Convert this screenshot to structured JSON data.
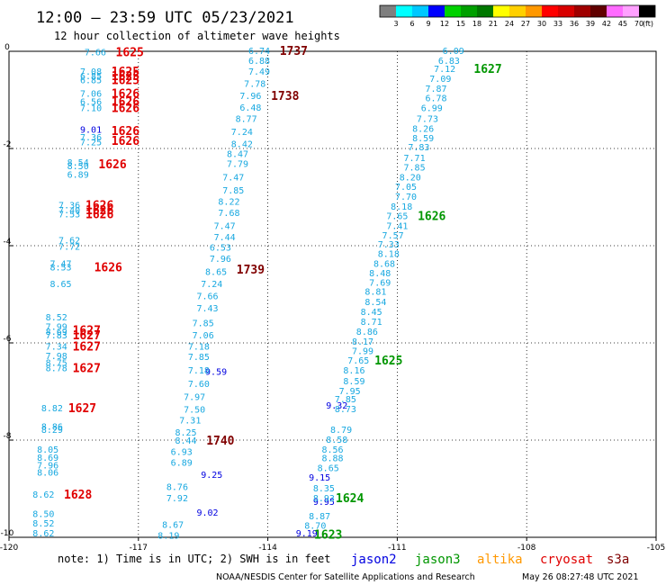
{
  "header": {
    "title": "12:00 – 23:59 UTC 05/23/2021",
    "subtitle": "12 hour collection of altimeter wave heights"
  },
  "color_scale": {
    "unit": "(ft)",
    "labels": [
      "3",
      "6",
      "9",
      "12",
      "15",
      "18",
      "21",
      "24",
      "27",
      "30",
      "33",
      "36",
      "39",
      "42",
      "45",
      "70"
    ],
    "colors": [
      "#7f7f7f",
      "#00ffff",
      "#00c8ff",
      "#0000ff",
      "#00d200",
      "#00a000",
      "#007800",
      "#ffff00",
      "#ffd000",
      "#ff9800",
      "#ff0000",
      "#d80000",
      "#a00000",
      "#600000",
      "#ff6aff",
      "#ffa0ff",
      "#000000"
    ]
  },
  "footer": {
    "note": "note: 1) Time is in UTC; 2) SWH is in feet",
    "legend": [
      {
        "name": "jason2",
        "color": "#0000e0"
      },
      {
        "name": "jason3",
        "color": "#009600"
      },
      {
        "name": "altika",
        "color": "#ff9800"
      },
      {
        "name": "cryosat",
        "color": "#e00000"
      },
      {
        "name": "s3a",
        "color": "#800000"
      }
    ],
    "credit": "NOAA/NESDIS Center for Satellite Applications and Research",
    "timestamp": "May 26 08:27:48 UTC 2021"
  },
  "chart_data": {
    "type": "scatter",
    "xlim": [
      -120,
      -105
    ],
    "ylim": [
      -10,
      0
    ],
    "x_ticks": [
      "-120",
      "-117",
      "-114",
      "-111",
      "-108",
      "-105"
    ],
    "y_ticks": [
      "0",
      "-2",
      "-4",
      "-6",
      "-8",
      "-10"
    ],
    "grid": true,
    "series": [
      {
        "name": "jason2",
        "color": "#0000e0",
        "points": [
          {
            "lon": -118.1,
            "lat": -1.62,
            "swh": "9.01"
          },
          {
            "lon": -115.2,
            "lat": -6.6,
            "swh": "9.59"
          },
          {
            "lon": -115.3,
            "lat": -8.72,
            "swh": "9.25"
          },
          {
            "lon": -115.4,
            "lat": -9.5,
            "swh": "9.02"
          },
          {
            "lon": -112.4,
            "lat": -7.3,
            "swh": "9.32"
          },
          {
            "lon": -112.8,
            "lat": -8.78,
            "swh": "9.15"
          },
          {
            "lon": -112.7,
            "lat": -9.28,
            "swh": "9.95"
          },
          {
            "lon": -113.1,
            "lat": -9.93,
            "swh": "9.19"
          }
        ]
      },
      {
        "name": "cyan-swh",
        "color": "#18a8e0",
        "points": [
          {
            "lon": -118.0,
            "lat": -0.03,
            "swh": "7.66"
          },
          {
            "lon": -118.1,
            "lat": -0.43,
            "swh": "7.08"
          },
          {
            "lon": -118.1,
            "lat": -0.52,
            "swh": "6.85"
          },
          {
            "lon": -118.1,
            "lat": -0.6,
            "swh": "6.85"
          },
          {
            "lon": -118.1,
            "lat": -0.88,
            "swh": "7.06"
          },
          {
            "lon": -118.1,
            "lat": -1.05,
            "swh": "6.56"
          },
          {
            "lon": -118.1,
            "lat": -1.18,
            "swh": "7.10"
          },
          {
            "lon": -118.1,
            "lat": -1.78,
            "swh": "7.36"
          },
          {
            "lon": -118.1,
            "lat": -1.88,
            "swh": "7.25"
          },
          {
            "lon": -118.4,
            "lat": -2.3,
            "swh": "8.54"
          },
          {
            "lon": -118.4,
            "lat": -2.37,
            "swh": "8.50"
          },
          {
            "lon": -118.4,
            "lat": -2.55,
            "swh": "6.89"
          },
          {
            "lon": -118.6,
            "lat": -3.18,
            "swh": "7.36"
          },
          {
            "lon": -118.6,
            "lat": -3.28,
            "swh": "7.40"
          },
          {
            "lon": -118.6,
            "lat": -3.36,
            "swh": "7.53"
          },
          {
            "lon": -118.6,
            "lat": -3.9,
            "swh": "7.62"
          },
          {
            "lon": -118.6,
            "lat": -4.03,
            "swh": "7.72"
          },
          {
            "lon": -118.8,
            "lat": -4.38,
            "swh": "7.47"
          },
          {
            "lon": -118.8,
            "lat": -4.45,
            "swh": "8.53"
          },
          {
            "lon": -118.8,
            "lat": -4.8,
            "swh": "8.65"
          },
          {
            "lon": -118.9,
            "lat": -5.48,
            "swh": "8.52"
          },
          {
            "lon": -118.9,
            "lat": -5.68,
            "swh": "7.99"
          },
          {
            "lon": -118.9,
            "lat": -5.78,
            "swh": "8.69"
          },
          {
            "lon": -118.9,
            "lat": -5.85,
            "swh": "7.83"
          },
          {
            "lon": -118.9,
            "lat": -6.08,
            "swh": "7.34"
          },
          {
            "lon": -118.9,
            "lat": -6.28,
            "swh": "7.98"
          },
          {
            "lon": -118.9,
            "lat": -6.42,
            "swh": "8.75"
          },
          {
            "lon": -118.9,
            "lat": -6.53,
            "swh": "8.78"
          },
          {
            "lon": -119.0,
            "lat": -7.35,
            "swh": "8.82"
          },
          {
            "lon": -119.0,
            "lat": -7.73,
            "swh": "8.86"
          },
          {
            "lon": -119.0,
            "lat": -7.8,
            "swh": "8.29"
          },
          {
            "lon": -119.1,
            "lat": -8.2,
            "swh": "8.05"
          },
          {
            "lon": -119.1,
            "lat": -8.37,
            "swh": "8.69"
          },
          {
            "lon": -119.1,
            "lat": -8.53,
            "swh": "7.96"
          },
          {
            "lon": -119.1,
            "lat": -8.68,
            "swh": "8.06"
          },
          {
            "lon": -119.2,
            "lat": -9.13,
            "swh": "8.62"
          },
          {
            "lon": -119.2,
            "lat": -9.53,
            "swh": "8.50"
          },
          {
            "lon": -119.2,
            "lat": -9.72,
            "swh": "8.52"
          },
          {
            "lon": -119.2,
            "lat": -9.93,
            "swh": "8.62"
          },
          {
            "lon": -114.2,
            "lat": 0.0,
            "swh": "6.74"
          },
          {
            "lon": -114.2,
            "lat": -0.2,
            "swh": "6.88"
          },
          {
            "lon": -114.2,
            "lat": -0.43,
            "swh": "7.49"
          },
          {
            "lon": -114.3,
            "lat": -0.68,
            "swh": "7.78"
          },
          {
            "lon": -114.4,
            "lat": -0.93,
            "swh": "7.96"
          },
          {
            "lon": -114.4,
            "lat": -1.17,
            "swh": "6.48"
          },
          {
            "lon": -114.5,
            "lat": -1.4,
            "swh": "8.77"
          },
          {
            "lon": -114.6,
            "lat": -1.67,
            "swh": "7.24"
          },
          {
            "lon": -114.6,
            "lat": -1.92,
            "swh": "8.42"
          },
          {
            "lon": -114.7,
            "lat": -2.12,
            "swh": "8.47"
          },
          {
            "lon": -114.7,
            "lat": -2.32,
            "swh": "7.79"
          },
          {
            "lon": -114.8,
            "lat": -2.6,
            "swh": "7.47"
          },
          {
            "lon": -114.8,
            "lat": -2.87,
            "swh": "7.85"
          },
          {
            "lon": -114.9,
            "lat": -3.1,
            "swh": "8.22"
          },
          {
            "lon": -114.9,
            "lat": -3.33,
            "swh": "7.68"
          },
          {
            "lon": -115.0,
            "lat": -3.6,
            "swh": "7.47"
          },
          {
            "lon": -115.0,
            "lat": -3.83,
            "swh": "7.44"
          },
          {
            "lon": -115.1,
            "lat": -4.05,
            "swh": "6.53"
          },
          {
            "lon": -115.1,
            "lat": -4.28,
            "swh": "7.96"
          },
          {
            "lon": -115.2,
            "lat": -4.55,
            "swh": "8.65"
          },
          {
            "lon": -115.3,
            "lat": -4.8,
            "swh": "7.24"
          },
          {
            "lon": -115.4,
            "lat": -5.05,
            "swh": "7.66"
          },
          {
            "lon": -115.4,
            "lat": -5.3,
            "swh": "7.43"
          },
          {
            "lon": -115.5,
            "lat": -5.6,
            "swh": "7.85"
          },
          {
            "lon": -115.5,
            "lat": -5.85,
            "swh": "7.06"
          },
          {
            "lon": -115.6,
            "lat": -6.08,
            "swh": "7.18"
          },
          {
            "lon": -115.6,
            "lat": -6.3,
            "swh": "7.85"
          },
          {
            "lon": -115.6,
            "lat": -6.57,
            "swh": "7.18"
          },
          {
            "lon": -115.6,
            "lat": -6.85,
            "swh": "7.60"
          },
          {
            "lon": -115.7,
            "lat": -7.12,
            "swh": "7.97"
          },
          {
            "lon": -115.7,
            "lat": -7.38,
            "swh": "7.50"
          },
          {
            "lon": -115.8,
            "lat": -7.6,
            "swh": "7.31"
          },
          {
            "lon": -115.9,
            "lat": -7.85,
            "swh": "8.25"
          },
          {
            "lon": -115.9,
            "lat": -8.02,
            "swh": "8.44"
          },
          {
            "lon": -116.0,
            "lat": -8.25,
            "swh": "6.93"
          },
          {
            "lon": -116.0,
            "lat": -8.47,
            "swh": "6.89"
          },
          {
            "lon": -116.1,
            "lat": -8.97,
            "swh": "8.76"
          },
          {
            "lon": -116.1,
            "lat": -9.2,
            "swh": "7.92"
          },
          {
            "lon": -116.2,
            "lat": -9.75,
            "swh": "8.67"
          },
          {
            "lon": -116.3,
            "lat": -9.97,
            "swh": "8.19"
          },
          {
            "lon": -109.7,
            "lat": 0.0,
            "swh": "6.09"
          },
          {
            "lon": -109.8,
            "lat": -0.2,
            "swh": "6.83"
          },
          {
            "lon": -109.9,
            "lat": -0.37,
            "swh": "7.12"
          },
          {
            "lon": -110.0,
            "lat": -0.57,
            "swh": "7.09"
          },
          {
            "lon": -110.1,
            "lat": -0.78,
            "swh": "7.87"
          },
          {
            "lon": -110.1,
            "lat": -0.97,
            "swh": "6.78"
          },
          {
            "lon": -110.2,
            "lat": -1.18,
            "swh": "6.99"
          },
          {
            "lon": -110.3,
            "lat": -1.4,
            "swh": "7.73"
          },
          {
            "lon": -110.4,
            "lat": -1.6,
            "swh": "8.26"
          },
          {
            "lon": -110.4,
            "lat": -1.8,
            "swh": "8.59"
          },
          {
            "lon": -110.5,
            "lat": -1.98,
            "swh": "7.83"
          },
          {
            "lon": -110.6,
            "lat": -2.2,
            "swh": "7.71"
          },
          {
            "lon": -110.6,
            "lat": -2.4,
            "swh": "7.85"
          },
          {
            "lon": -110.7,
            "lat": -2.6,
            "swh": "8.20"
          },
          {
            "lon": -110.8,
            "lat": -2.8,
            "swh": "7.05"
          },
          {
            "lon": -110.8,
            "lat": -3.0,
            "swh": "7.70"
          },
          {
            "lon": -110.9,
            "lat": -3.2,
            "swh": "8.18"
          },
          {
            "lon": -111.0,
            "lat": -3.4,
            "swh": "7.65"
          },
          {
            "lon": -111.0,
            "lat": -3.6,
            "swh": "7.41"
          },
          {
            "lon": -111.1,
            "lat": -3.8,
            "swh": "7.57"
          },
          {
            "lon": -111.2,
            "lat": -3.98,
            "swh": "7.33"
          },
          {
            "lon": -111.2,
            "lat": -4.18,
            "swh": "8.18"
          },
          {
            "lon": -111.3,
            "lat": -4.38,
            "swh": "8.68"
          },
          {
            "lon": -111.4,
            "lat": -4.57,
            "swh": "8.48"
          },
          {
            "lon": -111.4,
            "lat": -4.77,
            "swh": "7.69"
          },
          {
            "lon": -111.5,
            "lat": -4.95,
            "swh": "8.81"
          },
          {
            "lon": -111.5,
            "lat": -5.17,
            "swh": "8.54"
          },
          {
            "lon": -111.6,
            "lat": -5.37,
            "swh": "8.45"
          },
          {
            "lon": -111.6,
            "lat": -5.57,
            "swh": "8.71"
          },
          {
            "lon": -111.7,
            "lat": -5.78,
            "swh": "8.86"
          },
          {
            "lon": -111.8,
            "lat": -5.98,
            "swh": "8.17"
          },
          {
            "lon": -111.8,
            "lat": -6.18,
            "swh": "7.99"
          },
          {
            "lon": -111.9,
            "lat": -6.37,
            "swh": "7.65"
          },
          {
            "lon": -112.0,
            "lat": -6.57,
            "swh": "8.16"
          },
          {
            "lon": -112.0,
            "lat": -6.8,
            "swh": "8.59"
          },
          {
            "lon": -112.1,
            "lat": -7.0,
            "swh": "7.95"
          },
          {
            "lon": -112.2,
            "lat": -7.17,
            "swh": "7.85"
          },
          {
            "lon": -112.2,
            "lat": -7.37,
            "swh": "8.73"
          },
          {
            "lon": -112.3,
            "lat": -7.8,
            "swh": "8.79"
          },
          {
            "lon": -112.4,
            "lat": -8.0,
            "swh": "8.58"
          },
          {
            "lon": -112.5,
            "lat": -8.2,
            "swh": "8.56"
          },
          {
            "lon": -112.5,
            "lat": -8.38,
            "swh": "8.88"
          },
          {
            "lon": -112.6,
            "lat": -8.58,
            "swh": "8.65"
          },
          {
            "lon": -112.7,
            "lat": -9.0,
            "swh": "8.35"
          },
          {
            "lon": -112.7,
            "lat": -9.2,
            "swh": "8.93"
          },
          {
            "lon": -112.8,
            "lat": -9.57,
            "swh": "8.87"
          },
          {
            "lon": -112.9,
            "lat": -9.77,
            "swh": "8.70"
          }
        ]
      }
    ],
    "time_labels": [
      {
        "sat": "cryosat",
        "color": "#e00000",
        "lon": -117.2,
        "lat": -0.03,
        "time": "1625"
      },
      {
        "sat": "cryosat",
        "color": "#e00000",
        "lon": -117.3,
        "lat": -0.43,
        "time": "1625"
      },
      {
        "sat": "cryosat",
        "color": "#e00000",
        "lon": -117.3,
        "lat": -0.52,
        "time": "1625"
      },
      {
        "sat": "cryosat",
        "color": "#e00000",
        "lon": -117.3,
        "lat": -0.6,
        "time": "1625"
      },
      {
        "sat": "cryosat",
        "color": "#e00000",
        "lon": -117.3,
        "lat": -0.88,
        "time": "1626"
      },
      {
        "sat": "cryosat",
        "color": "#e00000",
        "lon": -117.3,
        "lat": -1.05,
        "time": "1626"
      },
      {
        "sat": "cryosat",
        "color": "#e00000",
        "lon": -117.3,
        "lat": -1.18,
        "time": "1626"
      },
      {
        "sat": "cryosat",
        "color": "#e00000",
        "lon": -117.3,
        "lat": -1.65,
        "time": "1626"
      },
      {
        "sat": "cryosat",
        "color": "#e00000",
        "lon": -117.3,
        "lat": -1.85,
        "time": "1626"
      },
      {
        "sat": "cryosat",
        "color": "#e00000",
        "lon": -117.6,
        "lat": -2.33,
        "time": "1626"
      },
      {
        "sat": "cryosat",
        "color": "#e00000",
        "lon": -117.9,
        "lat": -3.18,
        "time": "1626"
      },
      {
        "sat": "cryosat",
        "color": "#e00000",
        "lon": -117.9,
        "lat": -3.28,
        "time": "1626"
      },
      {
        "sat": "cryosat",
        "color": "#e00000",
        "lon": -117.9,
        "lat": -3.36,
        "time": "1626"
      },
      {
        "sat": "cryosat",
        "color": "#e00000",
        "lon": -117.7,
        "lat": -4.45,
        "time": "1626"
      },
      {
        "sat": "cryosat",
        "color": "#e00000",
        "lon": -118.2,
        "lat": -5.75,
        "time": "1627"
      },
      {
        "sat": "cryosat",
        "color": "#e00000",
        "lon": -118.2,
        "lat": -5.85,
        "time": "1627"
      },
      {
        "sat": "cryosat",
        "color": "#e00000",
        "lon": -118.2,
        "lat": -6.08,
        "time": "1627"
      },
      {
        "sat": "cryosat",
        "color": "#e00000",
        "lon": -118.2,
        "lat": -6.53,
        "time": "1627"
      },
      {
        "sat": "cryosat",
        "color": "#e00000",
        "lon": -118.3,
        "lat": -7.35,
        "time": "1627"
      },
      {
        "sat": "cryosat",
        "color": "#e00000",
        "lon": -118.4,
        "lat": -9.13,
        "time": "1628"
      },
      {
        "sat": "s3a",
        "color": "#800000",
        "lon": -113.4,
        "lat": 0.0,
        "time": "1737"
      },
      {
        "sat": "s3a",
        "color": "#800000",
        "lon": -113.6,
        "lat": -0.93,
        "time": "1738"
      },
      {
        "sat": "s3a",
        "color": "#800000",
        "lon": -114.4,
        "lat": -4.5,
        "time": "1739"
      },
      {
        "sat": "s3a",
        "color": "#800000",
        "lon": -115.1,
        "lat": -8.02,
        "time": "1740"
      },
      {
        "sat": "jason3",
        "color": "#009600",
        "lon": -108.9,
        "lat": -0.37,
        "time": "1627"
      },
      {
        "sat": "jason3",
        "color": "#009600",
        "lon": -110.2,
        "lat": -3.4,
        "time": "1626"
      },
      {
        "sat": "jason3",
        "color": "#009600",
        "lon": -111.2,
        "lat": -6.37,
        "time": "1625"
      },
      {
        "sat": "jason3",
        "color": "#009600",
        "lon": -112.1,
        "lat": -9.2,
        "time": "1624"
      },
      {
        "sat": "jason3",
        "color": "#009600",
        "lon": -112.6,
        "lat": -9.95,
        "time": "1623"
      }
    ]
  }
}
